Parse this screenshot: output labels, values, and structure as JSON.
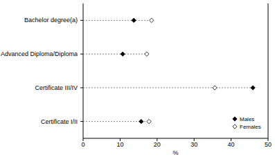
{
  "chart_data": {
    "type": "dot",
    "orientation": "horizontal",
    "categories": [
      "Bachelor degree(a)",
      "Advanced Diploma/Diploma",
      "Certificate III/IV",
      "Certificate I/II"
    ],
    "series": [
      {
        "name": "Males",
        "color": "#000000",
        "marker": "diamond-filled",
        "values": [
          13.7,
          10.7,
          45.9,
          15.7
        ]
      },
      {
        "name": "Females",
        "color": "#000000",
        "marker": "diamond-open",
        "values": [
          18.5,
          17.2,
          35.6,
          17.8
        ]
      }
    ],
    "x_label": "%",
    "xlim": [
      0,
      50
    ],
    "xticks": [
      0,
      10,
      20,
      30,
      40,
      50
    ],
    "legend": "bottom-right",
    "line_style": "dashed",
    "grid": false
  }
}
